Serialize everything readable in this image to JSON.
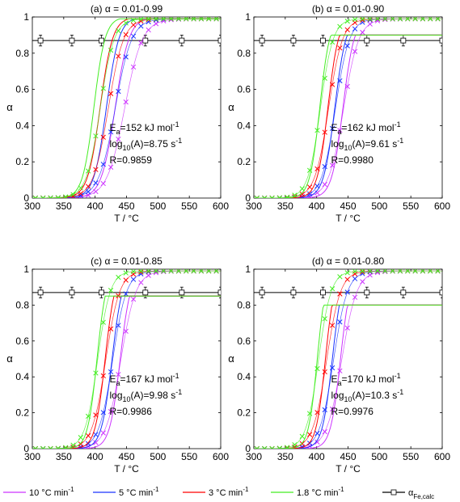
{
  "figure": {
    "ylabel": "α",
    "xlabel": "T / °C"
  },
  "colors": {
    "10": "#cc33ff",
    "5": "#1a33ff",
    "3": "#ff0000",
    "1.8": "#44ee22",
    "calc": "#000000"
  },
  "legend": {
    "items": [
      {
        "key": "10",
        "prefix": "10 °C min",
        "sup": "-1"
      },
      {
        "key": "5",
        "prefix": "5 °C min",
        "sup": "-1"
      },
      {
        "key": "3",
        "prefix": "3 °C min",
        "sup": "-1"
      },
      {
        "key": "1.8",
        "prefix": "1.8 °C min",
        "sup": "-1"
      },
      {
        "key": "calc",
        "prefix": "α",
        "sub": "Fe,calc"
      }
    ]
  },
  "chart_data": [
    {
      "type": "line",
      "title": "(a) α = 0.01-0.99",
      "xlabel": "T / °C",
      "ylabel": "α",
      "xlim": [
        300,
        600
      ],
      "ylim": [
        0,
        1
      ],
      "xticks": [
        300,
        350,
        400,
        450,
        500,
        550,
        600
      ],
      "yticks": [
        0,
        0.2,
        0.4,
        0.6,
        0.8,
        1
      ],
      "alpha_max": 0.99,
      "annotation": {
        "Ea": "E",
        "Ea_sub": "a",
        "Ea_val": "=152 kJ mol",
        "Ea_sup": "-1",
        "logA": "log",
        "logA_sub": "10",
        "logA_val": "(A)=8.75 s",
        "logA_sup": "-1",
        "R": "R=0.9859"
      },
      "series": [
        {
          "name": "10 °C min-1",
          "key": "10",
          "fit_mid": 432,
          "fit_w": 11,
          "exp_mid": 447,
          "exp_w": 14
        },
        {
          "name": "5 °C min-1",
          "key": "5",
          "fit_mid": 418,
          "fit_w": 10,
          "exp_mid": 432,
          "exp_w": 13
        },
        {
          "name": "3 °C min-1",
          "key": "3",
          "fit_mid": 408,
          "fit_w": 10,
          "exp_mid": 421,
          "exp_w": 12
        },
        {
          "name": "1.8 °C min-1",
          "key": "1.8",
          "fit_mid": 398,
          "fit_w": 9,
          "exp_mid": 408,
          "exp_w": 11
        }
      ],
      "calc": {
        "y": 0.87,
        "x": [
          313,
          363,
          410,
          480,
          538,
          600
        ],
        "err": 0.03
      }
    },
    {
      "type": "line",
      "title": "(b) α = 0.01-0.90",
      "xlabel": "T / °C",
      "ylabel": "α",
      "xlim": [
        300,
        600
      ],
      "ylim": [
        0,
        1
      ],
      "xticks": [
        300,
        350,
        400,
        450,
        500,
        550,
        600
      ],
      "yticks": [
        0,
        0.2,
        0.4,
        0.6,
        0.8,
        1
      ],
      "alpha_max": 0.9,
      "annotation": {
        "Ea": "E",
        "Ea_sub": "a",
        "Ea_val": "=162 kJ mol",
        "Ea_sup": "-1",
        "logA": "log",
        "logA_sub": "10",
        "logA_val": "(A)=9.61 s",
        "logA_sup": "-1",
        "R": "R=0.9980"
      },
      "series": [
        {
          "name": "10 °C min-1",
          "key": "10",
          "fit_mid": 442,
          "fit_w": 9,
          "exp_mid": 443,
          "exp_w": 12
        },
        {
          "name": "5 °C min-1",
          "key": "5",
          "fit_mid": 429,
          "fit_w": 9,
          "exp_mid": 430,
          "exp_w": 11
        },
        {
          "name": "3 °C min-1",
          "key": "3",
          "fit_mid": 418,
          "fit_w": 8.5,
          "exp_mid": 419,
          "exp_w": 11
        },
        {
          "name": "1.8 °C min-1",
          "key": "1.8",
          "fit_mid": 405,
          "fit_w": 8,
          "exp_mid": 406,
          "exp_w": 10
        }
      ],
      "calc": {
        "y": 0.87,
        "x": [
          313,
          363,
          410,
          480,
          538,
          600
        ],
        "err": 0.03
      }
    },
    {
      "type": "line",
      "title": "(c) α = 0.01-0.85",
      "xlabel": "T / °C",
      "ylabel": "α",
      "xlim": [
        300,
        600
      ],
      "ylim": [
        0,
        1
      ],
      "xticks": [
        300,
        350,
        400,
        450,
        500,
        550,
        600
      ],
      "yticks": [
        0,
        0.2,
        0.4,
        0.6,
        0.8,
        1
      ],
      "alpha_max": 0.85,
      "annotation": {
        "Ea": "E",
        "Ea_sub": "a",
        "Ea_val": "=167 kJ mol",
        "Ea_sup": "-1",
        "logA": "log",
        "logA_sub": "10",
        "logA_val": "(A)=9.98 s",
        "logA_sup": "-1",
        "R": "R=0.9986"
      },
      "series": [
        {
          "name": "10 °C min-1",
          "key": "10",
          "fit_mid": 440,
          "fit_w": 8.5,
          "exp_mid": 441,
          "exp_w": 12
        },
        {
          "name": "5 °C min-1",
          "key": "5",
          "fit_mid": 427,
          "fit_w": 8.5,
          "exp_mid": 428,
          "exp_w": 11
        },
        {
          "name": "3 °C min-1",
          "key": "3",
          "fit_mid": 416,
          "fit_w": 8,
          "exp_mid": 417,
          "exp_w": 11
        },
        {
          "name": "1.8 °C min-1",
          "key": "1.8",
          "fit_mid": 403,
          "fit_w": 7.5,
          "exp_mid": 404,
          "exp_w": 10
        }
      ],
      "calc": {
        "y": 0.87,
        "x": [
          313,
          363,
          410,
          480,
          538,
          600
        ],
        "err": 0.03
      }
    },
    {
      "type": "line",
      "title": "(d) α = 0.01-0.80",
      "xlabel": "T / °C",
      "ylabel": "α",
      "xlim": [
        300,
        600
      ],
      "ylim": [
        0,
        1
      ],
      "xticks": [
        300,
        350,
        400,
        450,
        500,
        550,
        600
      ],
      "yticks": [
        0,
        0.2,
        0.4,
        0.6,
        0.8,
        1
      ],
      "alpha_max": 0.8,
      "annotation": {
        "Ea": "E",
        "Ea_sub": "a",
        "Ea_val": "=170 kJ mol",
        "Ea_sup": "-1",
        "logA": "log",
        "logA_sub": "10",
        "logA_val": "(A)=10.3 s",
        "logA_sup": "-1",
        "R": "R=0.9976"
      },
      "series": [
        {
          "name": "10 °C min-1",
          "key": "10",
          "fit_mid": 438,
          "fit_w": 8,
          "exp_mid": 440,
          "exp_w": 12
        },
        {
          "name": "5 °C min-1",
          "key": "5",
          "fit_mid": 425,
          "fit_w": 8,
          "exp_mid": 427,
          "exp_w": 11
        },
        {
          "name": "3 °C min-1",
          "key": "3",
          "fit_mid": 414,
          "fit_w": 7.5,
          "exp_mid": 416,
          "exp_w": 11
        },
        {
          "name": "1.8 °C min-1",
          "key": "1.8",
          "fit_mid": 401,
          "fit_w": 7,
          "exp_mid": 403,
          "exp_w": 10
        }
      ],
      "calc": {
        "y": 0.87,
        "x": [
          313,
          363,
          410,
          480,
          538,
          600
        ],
        "err": 0.03
      }
    }
  ]
}
